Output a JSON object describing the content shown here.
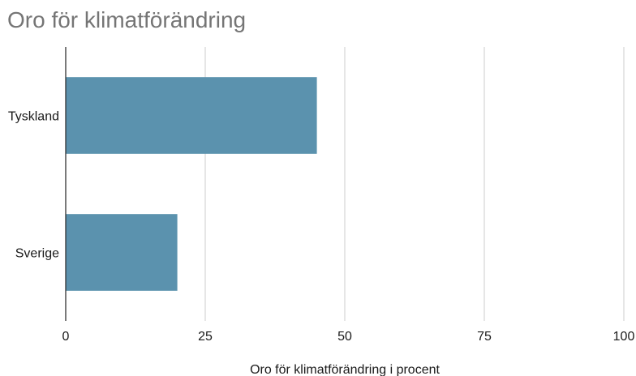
{
  "chart_data": {
    "type": "bar",
    "orientation": "horizontal",
    "title": "Oro för klimatförändring",
    "categories": [
      "Tyskland",
      "Sverige"
    ],
    "series": [
      {
        "values": [
          45,
          20
        ],
        "color": "#5b92ae"
      }
    ],
    "xlabel": "Oro för klimatförändring i procent",
    "ylabel": "",
    "xlim": [
      0,
      100
    ],
    "xticks": [
      0,
      25,
      50,
      75,
      100
    ],
    "xtick_labels": [
      "0",
      "25",
      "50",
      "75",
      "100"
    ],
    "grid": true,
    "gridline_color": "#cccccc",
    "axis_color": "#333333",
    "legend": "none"
  }
}
